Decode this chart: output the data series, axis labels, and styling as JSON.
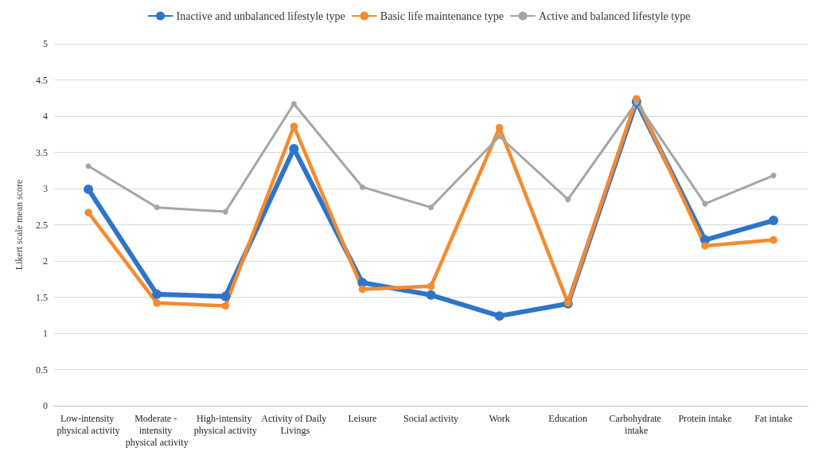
{
  "chart_data": {
    "type": "line",
    "ylabel": "Likert scale mean score",
    "categories": [
      "Low-intensity physical activity",
      "Moderate - intensity physical activity",
      "High-intensity physical activity",
      "Activity of Daily Livings",
      "Leisure",
      "Social activity",
      "Work",
      "Education",
      "Carbohydrate intake",
      "Protein intake",
      "Fat intake"
    ],
    "series": [
      {
        "name": "Inactive and unbalanced lifestyle type",
        "color": "#2e75c9",
        "values": [
          2.99,
          1.54,
          1.51,
          3.55,
          1.7,
          1.53,
          1.24,
          1.41,
          4.2,
          2.29,
          2.56
        ]
      },
      {
        "name": "Basic life maintenance type",
        "color": "#f58a2e",
        "values": [
          2.67,
          1.42,
          1.38,
          3.86,
          1.61,
          1.65,
          3.84,
          1.42,
          4.24,
          2.21,
          2.29
        ]
      },
      {
        "name": "Active and balanced lifestyle type",
        "color": "#a5a5a5",
        "values": [
          3.31,
          2.74,
          2.68,
          4.17,
          3.02,
          2.74,
          3.72,
          2.85,
          4.19,
          2.79,
          3.18
        ]
      }
    ],
    "ylim": [
      0,
      5
    ],
    "yticks": [
      0,
      0.5,
      1,
      1.5,
      2,
      2.5,
      3,
      3.5,
      4,
      4.5,
      5
    ],
    "grid": "y",
    "legend": "top",
    "marker": "circle",
    "line_style": "solid"
  }
}
